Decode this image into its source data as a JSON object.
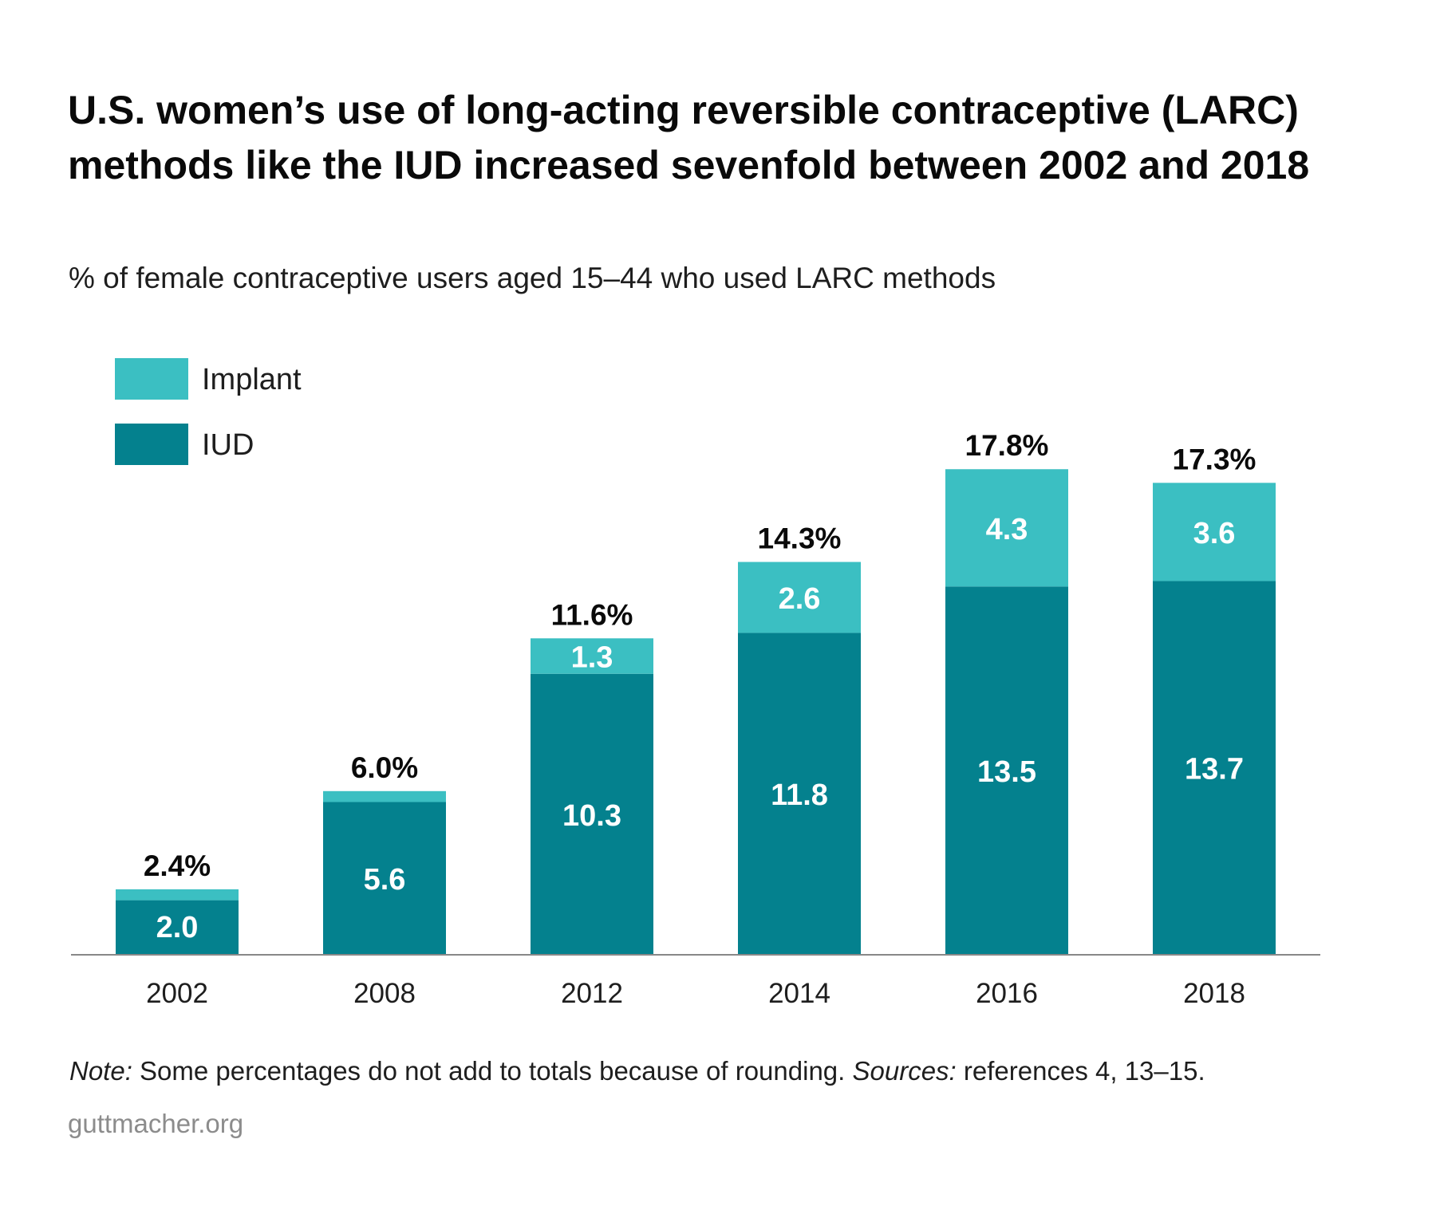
{
  "title": "U.S. women’s use of long-acting reversible contraceptive (LARC) methods like the IUD increased sevenfold between 2002 and 2018",
  "subtitle": "% of female contraceptive users aged 15–44 who used LARC methods",
  "note": {
    "note_label": "Note:",
    "note_text": " Some percentages do not add to totals because of rounding. ",
    "sources_label": "Sources:",
    "sources_text": " references 4, 13–15."
  },
  "source_site": "guttmacher.org",
  "colors": {
    "implant": "#3bbfc2",
    "iud": "#04818e",
    "axis": "#888888"
  },
  "chart_data": {
    "type": "bar",
    "stacked": true,
    "categories": [
      "2002",
      "2008",
      "2012",
      "2014",
      "2016",
      "2018"
    ],
    "series": [
      {
        "name": "IUD",
        "values": [
          2.0,
          5.6,
          10.3,
          11.8,
          13.5,
          13.7
        ],
        "labels": [
          "2.0",
          "5.6",
          "10.3",
          "11.8",
          "13.5",
          "13.7"
        ]
      },
      {
        "name": "Implant",
        "values": [
          0.4,
          0.4,
          1.3,
          2.6,
          4.3,
          3.6
        ],
        "labels": [
          "",
          "",
          "1.3",
          "2.6",
          "4.3",
          "3.6"
        ]
      }
    ],
    "totals": [
      2.4,
      6.0,
      11.6,
      14.3,
      17.8,
      17.3
    ],
    "total_labels": [
      "2.4%",
      "6.0%",
      "11.6%",
      "14.3%",
      "17.8%",
      "17.3%"
    ],
    "legend": [
      "Implant",
      "IUD"
    ],
    "legend_position": "top-left",
    "ylim": [
      0,
      21
    ],
    "grid": false,
    "xlabel": "",
    "ylabel": ""
  }
}
